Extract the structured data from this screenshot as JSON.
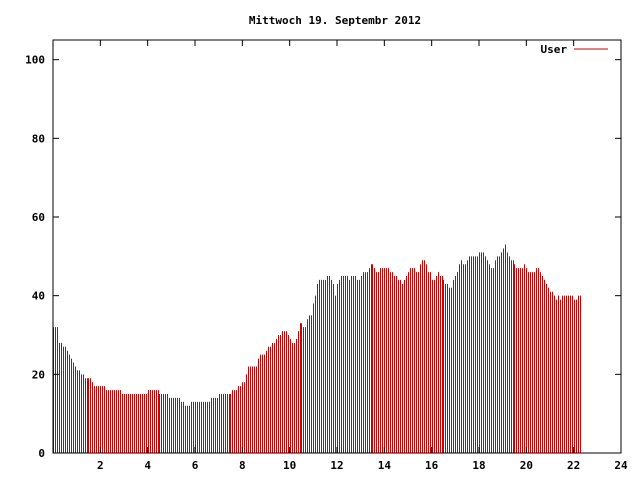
{
  "chart_data": {
    "type": "bar",
    "title": "Mittwoch 19. Septembr 2012",
    "xlabel": "",
    "ylabel": "",
    "xlim": [
      0,
      24
    ],
    "ylim": [
      0,
      105
    ],
    "x_ticks": [
      2,
      4,
      6,
      8,
      10,
      12,
      14,
      16,
      18,
      20,
      22,
      24
    ],
    "y_ticks": [
      0,
      20,
      40,
      60,
      80,
      100
    ],
    "legend_position": "top-right",
    "grid": false,
    "colors": {
      "series": "#cc0000",
      "axis": "#000000",
      "background": "#ffffff"
    },
    "x_step_hours": 0.08333,
    "series": [
      {
        "name": "User",
        "values": [
          32,
          32,
          32,
          28,
          28,
          27,
          27,
          26,
          25,
          24,
          23,
          22,
          21,
          21,
          20,
          20,
          19,
          19,
          19,
          19,
          18,
          17,
          17,
          17,
          17,
          17,
          17,
          16,
          16,
          16,
          16,
          16,
          16,
          16,
          16,
          15,
          15,
          15,
          15,
          15,
          15,
          15,
          15,
          15,
          15,
          15,
          15,
          15,
          16,
          16,
          16,
          16,
          16,
          16,
          15,
          15,
          15,
          15,
          15,
          14,
          14,
          14,
          14,
          14,
          14,
          13,
          13,
          12,
          12,
          12,
          13,
          13,
          13,
          13,
          13,
          13,
          13,
          13,
          13,
          13,
          14,
          14,
          14,
          14,
          15,
          15,
          15,
          15,
          15,
          15,
          15,
          16,
          16,
          16,
          17,
          17,
          18,
          18,
          20,
          22,
          22,
          22,
          22,
          22,
          24,
          25,
          25,
          25,
          26,
          27,
          27,
          28,
          28,
          29,
          30,
          30,
          31,
          31,
          31,
          30,
          29,
          28,
          28,
          29,
          31,
          33,
          33,
          32,
          32,
          34,
          35,
          35,
          38,
          40,
          43,
          44,
          44,
          44,
          44,
          45,
          45,
          44,
          43,
          40,
          43,
          44,
          45,
          45,
          45,
          45,
          44,
          45,
          45,
          45,
          44,
          44,
          45,
          46,
          46,
          46,
          47,
          48,
          48,
          47,
          46,
          46,
          47,
          47,
          47,
          47,
          47,
          46,
          46,
          45,
          45,
          44,
          44,
          43,
          44,
          45,
          46,
          47,
          47,
          47,
          46,
          46,
          48,
          49,
          49,
          48,
          46,
          46,
          44,
          44,
          45,
          46,
          45,
          45,
          44,
          43,
          43,
          42,
          42,
          44,
          45,
          46,
          48,
          49,
          48,
          48,
          49,
          50,
          50,
          50,
          50,
          50,
          51,
          51,
          51,
          50,
          49,
          48,
          47,
          47,
          49,
          50,
          50,
          51,
          52,
          53,
          51,
          50,
          49,
          49,
          48,
          47,
          47,
          47,
          47,
          48,
          47,
          46,
          46,
          46,
          46,
          47,
          47,
          46,
          45,
          44,
          43,
          42,
          41,
          41,
          40,
          39,
          40,
          39,
          40,
          40,
          40,
          40,
          40,
          40,
          39,
          39,
          40,
          40
        ]
      }
    ]
  }
}
